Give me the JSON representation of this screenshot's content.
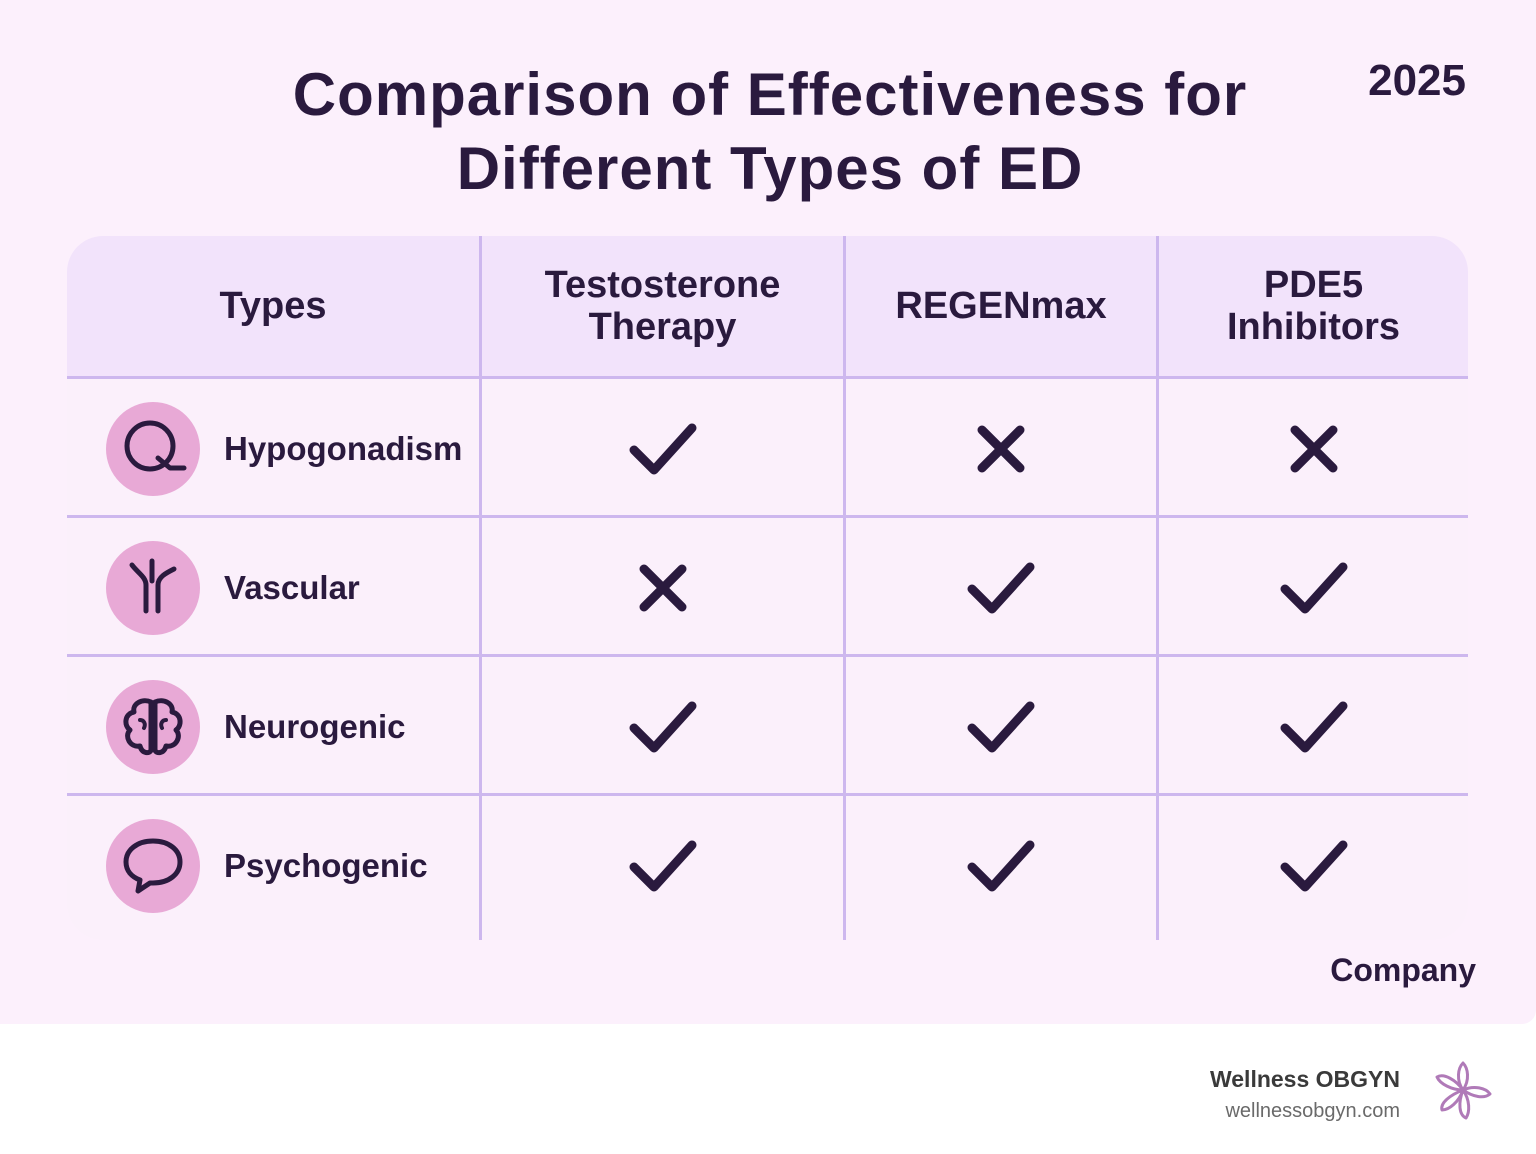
{
  "title_line1": "Comparison of Effectiveness for",
  "title_line2": "Different Types of ED",
  "year": "2025",
  "table": {
    "headers": [
      "Types",
      "Testosterone Therapy",
      "REGENmax",
      "PDE5 Inhibitors"
    ],
    "rows": [
      {
        "type": "Hypogonadism",
        "icon": "magnifier-icon",
        "marks": [
          "check",
          "cross",
          "cross"
        ]
      },
      {
        "type": "Vascular",
        "icon": "blood-vessel-icon",
        "marks": [
          "cross",
          "check",
          "check"
        ]
      },
      {
        "type": "Neurogenic",
        "icon": "brain-icon",
        "marks": [
          "check",
          "check",
          "check"
        ]
      },
      {
        "type": "Psychogenic",
        "icon": "speech-bubble-icon",
        "marks": [
          "check",
          "check",
          "check"
        ]
      }
    ]
  },
  "footer_label": "Company",
  "brand": {
    "name": "Wellness OBGYN",
    "url": "wellnessobgyn.com",
    "logo": "flower-logo-icon"
  },
  "colors": {
    "background": "#fcf0fc",
    "header_bg": "#f2e3fb",
    "grid": "#cdb7ee",
    "icon_circle": "#e8a9d6",
    "text": "#2a1a3e"
  }
}
